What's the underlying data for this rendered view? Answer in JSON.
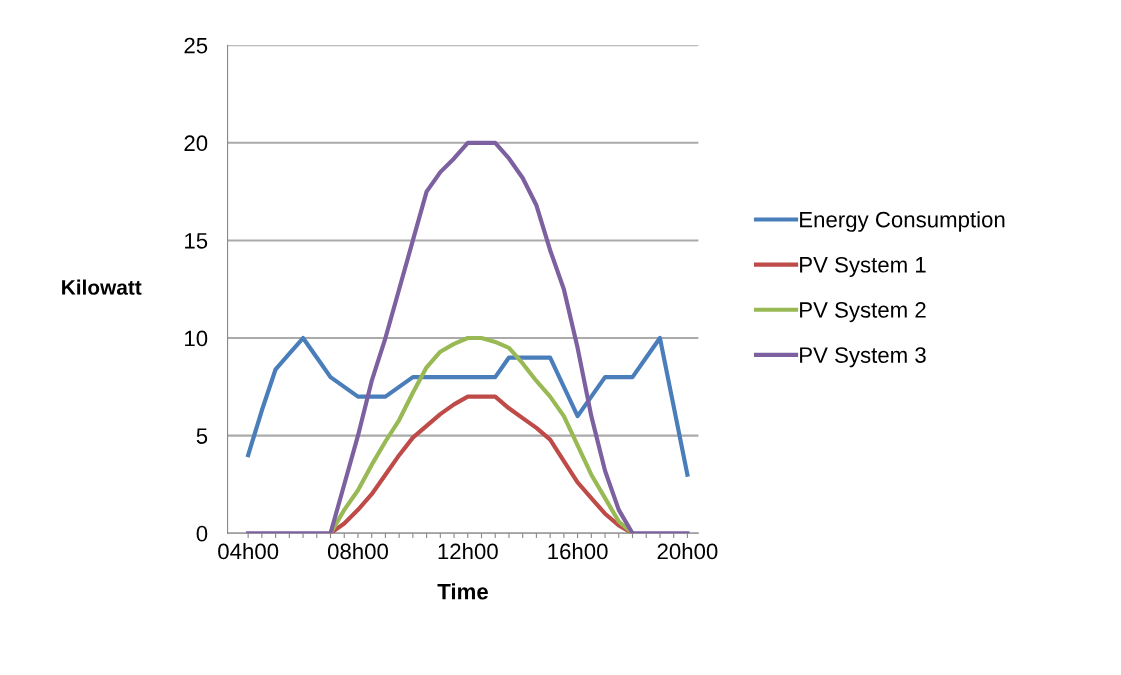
{
  "chart_data": {
    "type": "line",
    "xlabel": "Time",
    "ylabel": "Kilowatt",
    "categories": [
      "04h00",
      null,
      null,
      null,
      null,
      null,
      null,
      null,
      "08h00",
      null,
      null,
      null,
      null,
      null,
      null,
      null,
      "12h00",
      null,
      null,
      null,
      null,
      null,
      null,
      null,
      "16h00",
      null,
      null,
      null,
      null,
      null,
      null,
      null,
      "20h00"
    ],
    "ylim": [
      0,
      25
    ],
    "yticks": [
      0,
      5,
      10,
      15,
      20,
      25
    ],
    "grid": "y",
    "legend": "right",
    "marker": "none",
    "line_style": "solid",
    "series": [
      {
        "name": "Energy Consumption",
        "color": "#4a7ebb",
        "values": [
          4,
          6.3,
          8.4,
          9.2,
          10,
          9,
          8,
          7.5,
          7,
          7,
          7,
          7.5,
          8,
          8,
          8,
          8,
          8,
          8,
          8,
          9,
          9,
          9,
          9,
          7.5,
          6,
          7,
          8,
          8,
          8,
          9,
          10,
          6.5,
          3
        ]
      },
      {
        "name": "PV System 1",
        "color": "#be4b48",
        "values": [
          null,
          null,
          null,
          null,
          null,
          null,
          0,
          0.5,
          1.2,
          2.0,
          3.0,
          4.0,
          4.9,
          5.5,
          6.1,
          6.6,
          7,
          7,
          7,
          6.4,
          5.9,
          5.4,
          4.8,
          3.7,
          2.6,
          1.8,
          1.0,
          0.4,
          0,
          null,
          null,
          null,
          null
        ]
      },
      {
        "name": "PV System 2",
        "color": "#98b954",
        "values": [
          null,
          null,
          null,
          null,
          null,
          null,
          0,
          1.2,
          2.2,
          3.5,
          4.7,
          5.8,
          7.2,
          8.5,
          9.3,
          9.7,
          10,
          10,
          9.8,
          9.5,
          8.7,
          7.8,
          7.0,
          6.0,
          4.5,
          3.0,
          1.8,
          0.6,
          0,
          null,
          null,
          null,
          null
        ]
      },
      {
        "name": "PV System 3",
        "color": "#7d60a0",
        "values": [
          0,
          0,
          0,
          0,
          0,
          0,
          0,
          2.5,
          5,
          7.8,
          10,
          12.5,
          15,
          17.5,
          18.5,
          19.2,
          20,
          20,
          20,
          19.2,
          18.2,
          16.8,
          14.5,
          12.5,
          9.5,
          6,
          3.2,
          1.2,
          0,
          0,
          0,
          0,
          0
        ]
      }
    ]
  }
}
